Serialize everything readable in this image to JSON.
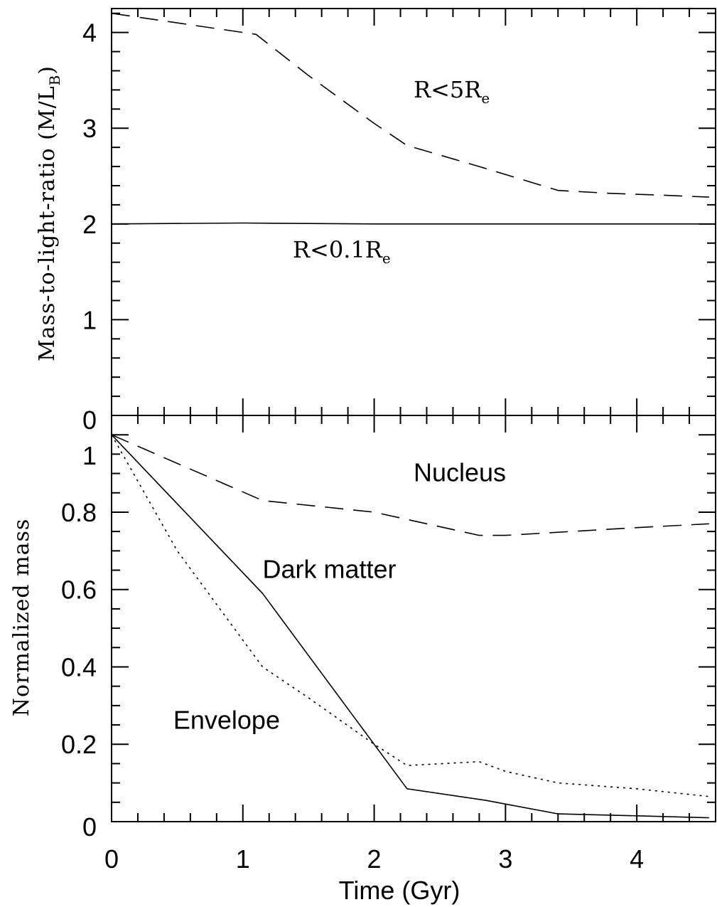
{
  "chart_data": [
    {
      "type": "line",
      "panel": "top",
      "ylabel": "Mass-to-light-ratio (M/L",
      "ylabel_sub": "B",
      "ylabel_close": ")",
      "xlim": [
        0,
        4.6
      ],
      "ylim": [
        0,
        4.25
      ],
      "yticks": [
        0,
        1,
        2,
        3,
        4
      ],
      "ytick_labels": [
        "0",
        "1",
        "2",
        "3",
        "4"
      ],
      "annotations": [
        {
          "text": "R<5R",
          "sub": "e",
          "x": 2.3,
          "y": 3.32
        },
        {
          "text": "R<0.1R",
          "sub": "e",
          "x": 1.38,
          "y": 1.65
        }
      ],
      "series": [
        {
          "style": "dashed",
          "x": [
            0,
            1.1,
            1.5,
            2.0,
            2.25,
            2.8,
            3.4,
            3.8,
            4.2,
            4.55
          ],
          "y": [
            4.2,
            3.98,
            3.55,
            3.05,
            2.82,
            2.6,
            2.35,
            2.32,
            2.3,
            2.28
          ]
        },
        {
          "style": "solid",
          "x": [
            0,
            1.0,
            2.0,
            3.0,
            4.0,
            4.6
          ],
          "y": [
            2.0,
            2.01,
            2.0,
            2.0,
            2.0,
            2.0
          ]
        }
      ]
    },
    {
      "type": "line",
      "panel": "bottom",
      "xlabel": "Time  (Gyr)",
      "ylabel": "Normalized mass",
      "xlim": [
        0,
        4.6
      ],
      "ylim": [
        0,
        1.05
      ],
      "xticks": [
        0,
        1,
        2,
        3,
        4
      ],
      "xtick_labels": [
        "0",
        "1",
        "2",
        "3",
        "4"
      ],
      "yticks": [
        0,
        0.2,
        0.4,
        0.6,
        0.8,
        1
      ],
      "ytick_labels": [
        "0",
        "0.2",
        "0.4",
        "0.6",
        "0.8",
        "1"
      ],
      "annotations": [
        {
          "text": "Nucleus",
          "x": 2.3,
          "y": 0.88
        },
        {
          "text": "Dark matter",
          "x": 1.15,
          "y": 0.63
        },
        {
          "text": "Envelope",
          "x": 0.47,
          "y": 0.24
        }
      ],
      "series": [
        {
          "style": "dashed",
          "x": [
            0,
            1.15,
            2.0,
            2.8,
            3.0,
            3.5,
            4.0,
            4.55
          ],
          "y": [
            1.0,
            0.83,
            0.8,
            0.74,
            0.74,
            0.75,
            0.76,
            0.77
          ]
        },
        {
          "style": "solid",
          "x": [
            0,
            1.15,
            2.25,
            2.85,
            3.4,
            4.0,
            4.55
          ],
          "y": [
            1.0,
            0.59,
            0.085,
            0.055,
            0.02,
            0.015,
            0.01
          ]
        },
        {
          "style": "dotted",
          "x": [
            0,
            0.5,
            1.15,
            1.5,
            2.0,
            2.25,
            2.8,
            3.0,
            3.4,
            4.0,
            4.55
          ],
          "y": [
            1.0,
            0.7,
            0.4,
            0.32,
            0.2,
            0.145,
            0.155,
            0.13,
            0.1,
            0.085,
            0.065
          ]
        }
      ]
    }
  ]
}
